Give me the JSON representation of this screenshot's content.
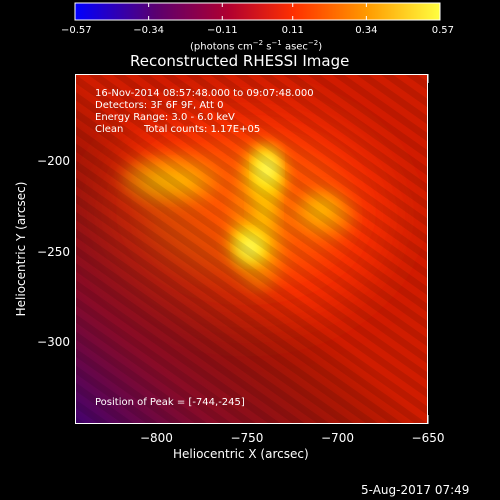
{
  "figure": {
    "title": "Reconstructed RHESSI Image",
    "datetime_stamp": "5-Aug-2017 07:49"
  },
  "colorbar": {
    "tick_labels": [
      "−0.57",
      "−0.34",
      "−0.11",
      "0.11",
      "0.34",
      "0.57"
    ],
    "tick_values": [
      -0.57,
      -0.34,
      -0.11,
      0.11,
      0.34,
      0.57
    ],
    "range": [
      -0.57,
      0.57
    ],
    "units_label": "(photons cm",
    "units_exp1": "−2",
    "units_mid": " s",
    "units_exp2": "−1",
    "units_mid2": " asec",
    "units_exp3": "−2",
    "units_end": ")",
    "colors": [
      "#0000ff",
      "#5a0070",
      "#b00030",
      "#ff3000",
      "#ff9a00",
      "#ffff40"
    ]
  },
  "axes": {
    "xlabel": "Heliocentric X (arcsec)",
    "ylabel": "Heliocentric Y (arcsec)",
    "xlim": [
      -845,
      -650
    ],
    "ylim": [
      -345,
      -152
    ],
    "x_tick_labels": [
      "−800",
      "−750",
      "−700",
      "−650"
    ],
    "x_tick_values": [
      -800,
      -750,
      -700,
      -650
    ],
    "y_tick_labels": [
      "−200",
      "−250",
      "−300"
    ],
    "y_tick_values": [
      -200,
      -250,
      -300
    ]
  },
  "annotations": {
    "time_range": "16-Nov-2014 08:57:48.000 to 09:07:48.000",
    "detectors": "Detectors: 3F 6F 9F, Att 0",
    "energy_range": "Energy Range: 3.0 - 6.0 keV",
    "method": "Clean",
    "total_counts": "Total counts: 1.17E+05",
    "peak_position": "Position of Peak = [-744,-245]"
  },
  "image_data": {
    "peak": [
      -744,
      -245
    ],
    "sources": [
      {
        "x": -744,
        "y": -245
      },
      {
        "x": -740,
        "y": -205
      },
      {
        "x": -790,
        "y": -210
      },
      {
        "x": -702,
        "y": -222
      }
    ]
  }
}
